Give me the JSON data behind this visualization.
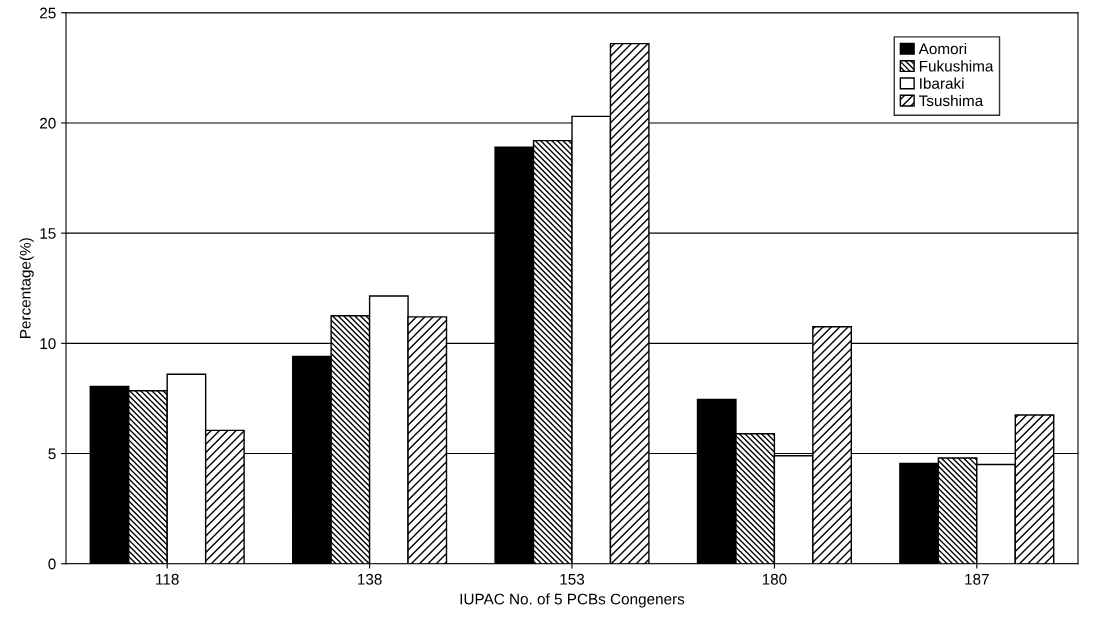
{
  "chart_data": {
    "type": "bar",
    "xlabel": "IUPAC No. of 5 PCBs Congeners",
    "ylabel": "Percentage(%)",
    "categories": [
      "118",
      "138",
      "153",
      "180",
      "187"
    ],
    "series": [
      {
        "name": "Aomori",
        "color": "#000000",
        "values": [
          8.05,
          9.4,
          18.9,
          7.45,
          4.55
        ]
      },
      {
        "name": "Fukushima",
        "color": "#000000",
        "values": [
          7.85,
          11.25,
          19.2,
          5.9,
          4.8
        ]
      },
      {
        "name": "Ibaraki",
        "color": "#ffffff",
        "values": [
          8.6,
          12.15,
          20.3,
          4.9,
          4.5
        ]
      },
      {
        "name": "Tsushima",
        "color": "#000000",
        "values": [
          6.05,
          11.2,
          23.6,
          10.75,
          6.75
        ]
      }
    ],
    "ylim": [
      0,
      25
    ],
    "yticks": [
      0,
      5,
      10,
      15,
      20,
      25
    ],
    "grid": "y",
    "legend": "top right"
  }
}
